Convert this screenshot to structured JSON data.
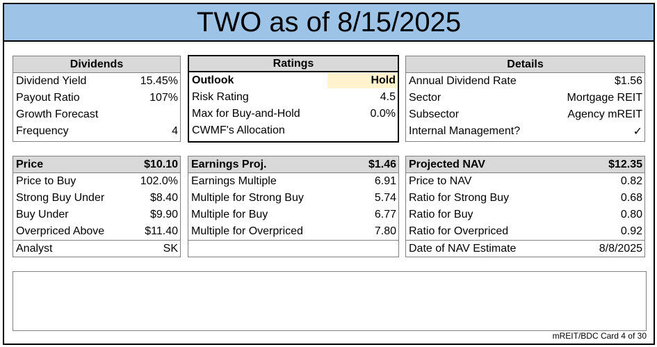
{
  "title": "TWO as of 8/15/2025",
  "dividends": {
    "header": "Dividends",
    "rows": [
      {
        "label": "Dividend Yield",
        "value": "15.45%"
      },
      {
        "label": "Payout Ratio",
        "value": "107%"
      },
      {
        "label": "Growth Forecast",
        "value": ""
      },
      {
        "label": "Frequency",
        "value": "4"
      }
    ]
  },
  "ratings": {
    "header": "Ratings",
    "outlook_label": "Outlook",
    "outlook_value": "Hold",
    "rows": [
      {
        "label": "Risk Rating",
        "value": "4.5"
      },
      {
        "label": "Max for Buy-and-Hold",
        "value": "0.0%"
      },
      {
        "label": "CWMF's Allocation",
        "value": ""
      }
    ]
  },
  "details": {
    "header": "Details",
    "rows": [
      {
        "label": "Annual Dividend Rate",
        "value": "$1.56"
      },
      {
        "label": "Sector",
        "value": "Mortgage REIT"
      },
      {
        "label": "Subsector",
        "value": "Agency mREIT"
      },
      {
        "label": "Internal Management?",
        "value": "✓"
      }
    ]
  },
  "price": {
    "header_label": "Price",
    "header_value": "$10.10",
    "rows": [
      {
        "label": "Price to Buy",
        "value": "102.0%"
      },
      {
        "label": "Strong Buy Under",
        "value": "$8.40"
      },
      {
        "label": "Buy Under",
        "value": "$9.90"
      },
      {
        "label": "Overpriced Above",
        "value": "$11.40"
      }
    ],
    "analyst_label": "Analyst",
    "analyst_value": "SK"
  },
  "earnings": {
    "header_label": "Earnings Proj.",
    "header_value": "$1.46",
    "rows": [
      {
        "label": "Earnings Multiple",
        "value": "6.91"
      },
      {
        "label": "Multiple for Strong Buy",
        "value": "5.74"
      },
      {
        "label": "Multiple for Buy",
        "value": "6.77"
      },
      {
        "label": "Multiple for Overpriced",
        "value": "7.80"
      }
    ]
  },
  "nav": {
    "header_label": "Projected NAV",
    "header_value": "$12.35",
    "rows": [
      {
        "label": "Price to NAV",
        "value": "0.82"
      },
      {
        "label": "Ratio for Strong Buy",
        "value": "0.68"
      },
      {
        "label": "Ratio for Buy",
        "value": "0.80"
      },
      {
        "label": "Ratio for Overpriced",
        "value": "0.92"
      }
    ],
    "date_label": "Date of NAV Estimate",
    "date_value": "8/8/2025"
  },
  "notes": "",
  "footer": "mREIT/BDC Card 4 of 30"
}
